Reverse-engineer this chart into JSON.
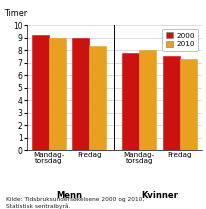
{
  "groups": [
    {
      "label": "Mandag-\ntorsdag",
      "section": "Menn",
      "val_2000": 9.2,
      "val_2010": 9.0
    },
    {
      "label": "Fredag",
      "section": "Menn",
      "val_2000": 9.0,
      "val_2010": 8.3
    },
    {
      "label": "Mandag-\ntorsdag",
      "section": "Kvinner",
      "val_2000": 7.8,
      "val_2010": 8.0
    },
    {
      "label": "Fredag",
      "section": "Kvinner",
      "val_2000": 7.5,
      "val_2010": 7.3
    }
  ],
  "color_2000": "#cc1111",
  "color_2010": "#e8a020",
  "ylim": [
    0,
    10
  ],
  "yticks": [
    0,
    1,
    2,
    3,
    4,
    5,
    6,
    7,
    8,
    9,
    10
  ],
  "ylabel": "Timer",
  "legend_2000": "2000",
  "legend_2010": "2010",
  "source_text": "Kilde: Tidsbruksundersøkelsene 2000 og 2010,\nStatistisk sentralbyrå.",
  "bar_width": 0.32,
  "background_color": "#ffffff",
  "grid_color": "#cccccc",
  "positions": [
    0.42,
    1.18,
    2.12,
    2.88
  ]
}
